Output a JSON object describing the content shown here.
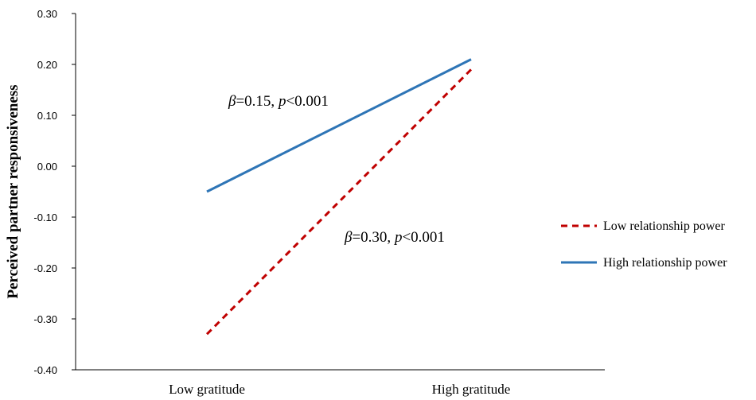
{
  "chart_data": {
    "type": "line",
    "title": "",
    "xlabel": "",
    "ylabel": "Perceived partner responsiveness",
    "categories": [
      "Low gratitude",
      "High gratitude"
    ],
    "ylim": [
      -0.4,
      0.3
    ],
    "yticks": [
      "0.30",
      "0.20",
      "0.10",
      "0.00",
      "-0.10",
      "-0.20",
      "-0.30",
      "-0.40"
    ],
    "ytick_values": [
      0.3,
      0.2,
      0.1,
      0.0,
      -0.1,
      -0.2,
      -0.3,
      -0.4
    ],
    "grid": false,
    "legend_position": "right",
    "series": [
      {
        "name": "Low relationship power",
        "values": [
          -0.33,
          0.19
        ],
        "color": "#c00000",
        "style": "dashed"
      },
      {
        "name": "High relationship power",
        "values": [
          -0.05,
          0.21
        ],
        "color": "#2e75b6",
        "style": "solid"
      }
    ],
    "annotations": [
      {
        "beta_symbol": "β",
        "eq_text": "=0.15, ",
        "p_symbol": "p",
        "p_text": "<0.001"
      },
      {
        "beta_symbol": "β",
        "eq_text": "=0.30, ",
        "p_symbol": "p",
        "p_text": "<0.001"
      }
    ]
  }
}
